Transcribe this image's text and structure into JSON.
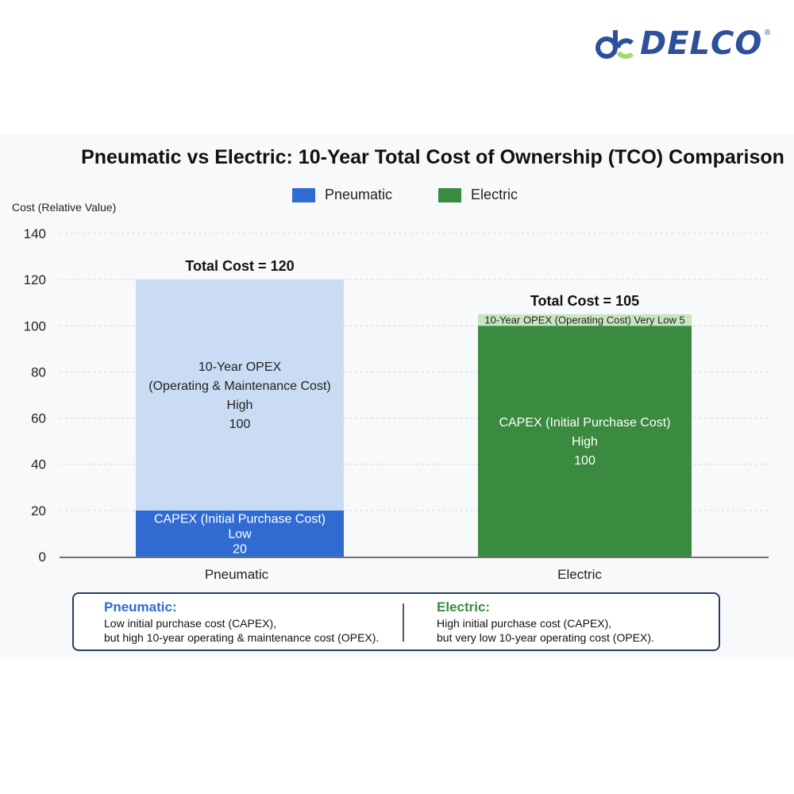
{
  "brand": {
    "name": "DELCO",
    "registered": "®",
    "colors": {
      "primary": "#2d4f9c",
      "accent": "#a8d86a"
    }
  },
  "chart_data": {
    "type": "stacked-bar",
    "title": "Pneumatic vs Electric: 10-Year Total Cost of Ownership (TCO) Comparison",
    "ylabel": "Cost (Relative Value)",
    "xlabel": "",
    "ylim": [
      0,
      140
    ],
    "yticks": [
      0,
      20,
      40,
      60,
      80,
      100,
      120,
      140
    ],
    "grid": true,
    "legend_position": "top-center",
    "legend": [
      {
        "name": "Pneumatic",
        "color": "#2f6bd1"
      },
      {
        "name": "Electric",
        "color": "#3a8a3f"
      }
    ],
    "categories": [
      "Pneumatic",
      "Electric"
    ],
    "bars": [
      {
        "category": "Pneumatic",
        "total_label": "Total Cost = 120",
        "segments": [
          {
            "name": "CAPEX",
            "value": 20,
            "color": "#2f6bd1",
            "text_color": "#ffffff",
            "lines": [
              "CAPEX (Initial Purchase Cost)",
              "Low",
              "20"
            ]
          },
          {
            "name": "OPEX",
            "value": 100,
            "color": "#cadcf3",
            "text_color": "#222222",
            "lines": [
              "10-Year OPEX",
              "(Operating & Maintenance Cost)",
              "High",
              "100"
            ]
          }
        ]
      },
      {
        "category": "Electric",
        "total_label": "Total Cost = 105",
        "segments": [
          {
            "name": "CAPEX",
            "value": 100,
            "color": "#3a8a3f",
            "text_color": "#ffffff",
            "lines": [
              "CAPEX (Initial Purchase Cost)",
              "High",
              "100"
            ]
          },
          {
            "name": "OPEX",
            "value": 5,
            "color": "#c6e6c0",
            "text_color": "#222222",
            "lines": [
              "10-Year OPEX (Operating Cost) Very Low 5"
            ]
          }
        ]
      }
    ]
  },
  "notes": {
    "pneumatic": {
      "heading": "Pneumatic:",
      "line1": "Low initial purchase cost (CAPEX),",
      "line2": "but high 10-year operating & maintenance cost (OPEX).",
      "color": "#2f6bd1"
    },
    "electric": {
      "heading": "Electric:",
      "line1": "High initial purchase cost (CAPEX),",
      "line2": "but very low 10-year operating cost (OPEX).",
      "color": "#3a8a3f"
    }
  }
}
